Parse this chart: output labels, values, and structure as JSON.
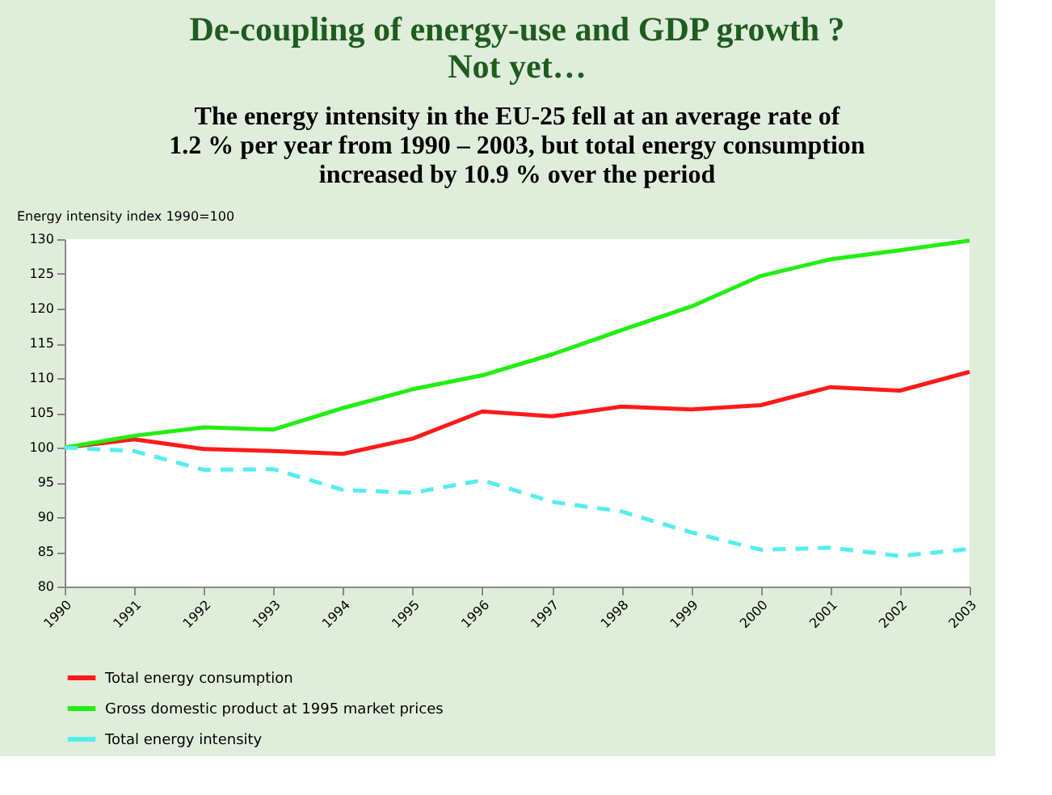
{
  "chart_data": {
    "type": "line",
    "title": [
      "De-coupling of energy-use and GDP growth ?",
      "Not yet…"
    ],
    "subtitle": [
      "The energy intensity in the EU-25 fell at an average rate of",
      "1.2 % per year from 1990 – 2003, but total energy consumption",
      "increased by 10.9 % over the period"
    ],
    "ylabel": "Energy intensity index 1990=100",
    "x": [
      1990,
      1991,
      1992,
      1993,
      1994,
      1995,
      1996,
      1997,
      1998,
      1999,
      2000,
      2001,
      2002,
      2003
    ],
    "xlim": [
      1990,
      2003
    ],
    "xticks": [
      1990,
      1991,
      1992,
      1993,
      1994,
      1995,
      1996,
      1997,
      1998,
      1999,
      2000,
      2001,
      2002,
      2003
    ],
    "ylim": [
      80,
      130
    ],
    "yticks": [
      80,
      85,
      90,
      95,
      100,
      105,
      110,
      115,
      120,
      125,
      130
    ],
    "grid": false,
    "legend": "bottom",
    "marker": "none",
    "series": [
      {
        "name": "Total energy consumption",
        "color": "#ff1a1a",
        "line_style": "solid",
        "values": [
          100,
          101.2,
          99.8,
          99.5,
          99.1,
          101.3,
          105.2,
          104.5,
          105.9,
          105.5,
          106.1,
          108.7,
          108.2,
          110.9
        ]
      },
      {
        "name": "Gross domestic product at 1995 market prices",
        "color": "#22ee11",
        "line_style": "solid",
        "values": [
          100,
          101.7,
          102.9,
          102.6,
          105.7,
          108.4,
          110.4,
          113.4,
          116.9,
          120.3,
          124.7,
          127.1,
          128.4,
          129.8
        ]
      },
      {
        "name": "Total energy intensity",
        "color": "#55eeee",
        "line_style": "dashed",
        "values": [
          100,
          99.5,
          96.8,
          96.9,
          93.9,
          93.5,
          95.3,
          92.2,
          90.8,
          87.8,
          85.3,
          85.6,
          84.4,
          85.4
        ]
      }
    ]
  }
}
